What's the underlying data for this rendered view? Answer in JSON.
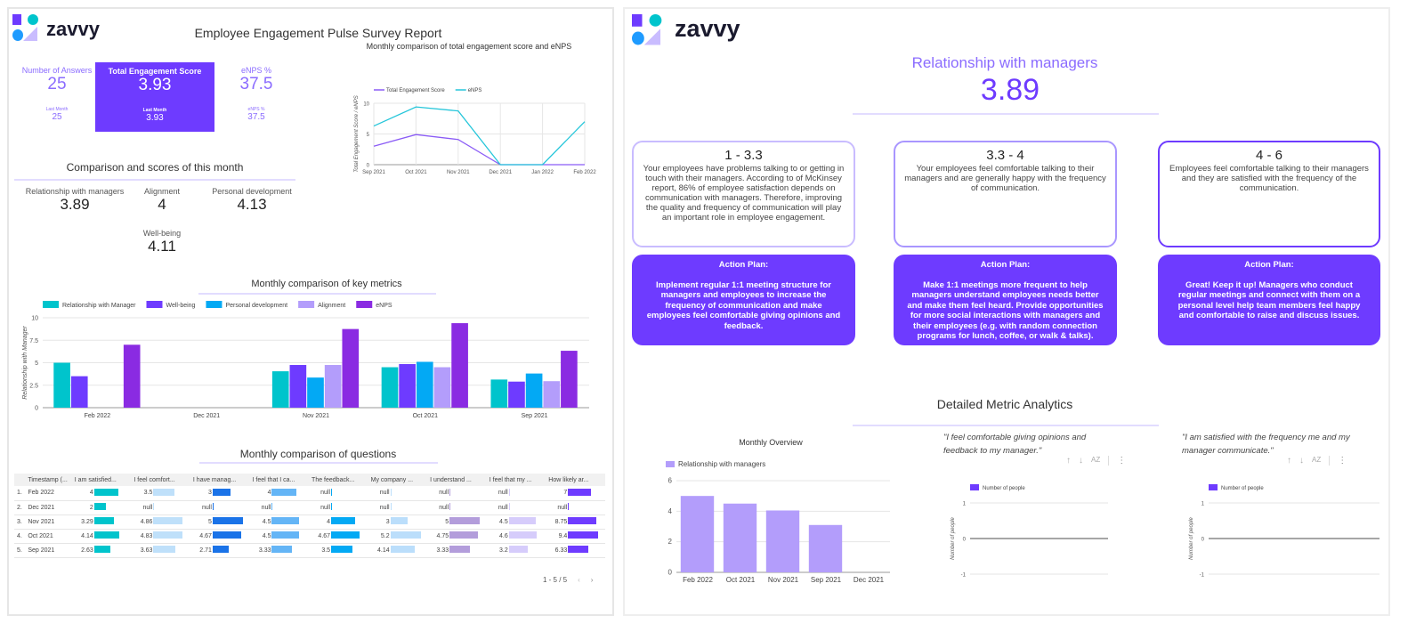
{
  "colors": {
    "accent": "#6e3bff",
    "accent_light": "#8b6cff",
    "teal": "#00c4cc"
  },
  "left": {
    "brand": "zavvy",
    "title": "Employee Engagement Pulse Survey Report",
    "kpis": {
      "answers": {
        "label": "Number of Answers",
        "value": "25",
        "last_label": "Last Month",
        "last_value": "25"
      },
      "engagement": {
        "label": "Total Engagement Score",
        "value": "3.93",
        "last_label": "Last Month",
        "last_value": "3.93"
      },
      "enps": {
        "label": "eNPS %",
        "value": "37.5",
        "last_label": "eNPS %",
        "last_value": "37.5"
      }
    },
    "comparison_title": "Comparison and scores of this month",
    "scores": [
      {
        "label": "Relationship with managers",
        "value": "3.89"
      },
      {
        "label": "Alignment",
        "value": "4"
      },
      {
        "label": "Personal development",
        "value": "4.13"
      },
      {
        "label": "Well-being",
        "value": "4.11"
      }
    ],
    "questions_title": "Monthly comparison of questions",
    "table": {
      "headers": [
        "",
        "Timestamp (...",
        "I am satisfied...",
        "I feel comfort...",
        "I have manag...",
        "I feel that I ca...",
        "The feedback...",
        "My company ...",
        "I understand ...",
        "I feel that my ...",
        "How likely ar..."
      ],
      "bar_colors": [
        "#00c4cc",
        "#bfe0fa",
        "#1a73e8",
        "#64b5f6",
        "#03a9f4",
        "#bbdefb",
        "#b39ddb",
        "#d6ccfb",
        "#6e3bff"
      ],
      "rows": [
        [
          "1.",
          "Feb 2022",
          "4",
          "3.5",
          "3",
          "4",
          "null",
          "null",
          "null",
          "null",
          "7"
        ],
        [
          "2.",
          "Dec 2021",
          "2",
          "null",
          "null",
          "null",
          "null",
          "null",
          "null",
          "null",
          "null"
        ],
        [
          "3.",
          "Nov 2021",
          "3.29",
          "4.86",
          "5",
          "4.5",
          "4",
          "3",
          "5",
          "4.5",
          "8.75"
        ],
        [
          "4.",
          "Oct 2021",
          "4.14",
          "4.83",
          "4.67",
          "4.5",
          "4.67",
          "5.2",
          "4.75",
          "4.6",
          "9.4"
        ],
        [
          "5.",
          "Sep 2021",
          "2.63",
          "3.63",
          "2.71",
          "3.33",
          "3.5",
          "4.14",
          "3.33",
          "3.2",
          "6.33"
        ]
      ],
      "pagination": "1 - 5 / 5"
    }
  },
  "right": {
    "brand": "zavvy",
    "metric_title": "Relationship with managers",
    "metric_value": "3.89",
    "cards": [
      {
        "range": "1 - 3.3",
        "text": "Your employees have problems talking to or getting in touch with their managers. According to of McKinsey report, 86% of employee satisfaction depends on communication with managers. Therefore, improving the quality and frequency of communication will play an important role in employee engagement.",
        "action_title": "Action Plan:",
        "action": "Implement regular 1:1 meeting structure for managers and employees to increase the frequency of communication and make employees feel comfortable giving opinions and feedback."
      },
      {
        "range": "3.3 - 4",
        "text": "Your employees feel comfortable talking to their managers and are generally happy with the frequency of communication.",
        "action_title": "Action Plan:",
        "action": "Make 1:1 meetings more frequent to help managers understand employees needs better and make them feel heard. Provide opportunities for more social interactions with managers and their employees (e.g. with random connection programs for lunch, coffee, or walk & talks)."
      },
      {
        "range": "4 - 6",
        "text": "Employees feel comfortable talking to their managers and they are satisfied with the frequency of the communication.",
        "action_title": "Action Plan:",
        "action": "Great! Keep it up! Managers who conduct regular meetings and connect with them on a personal level help team members feel happy and comfortable to raise and discuss issues."
      }
    ],
    "detailed_title": "Detailed Metric Analytics",
    "quotes": [
      "\"I feel comfortable giving opinions and feedback to my manager.\"",
      "\"I am satisfied with the frequency me and my manager communicate.\""
    ],
    "sort_icons": [
      "arrow-up-icon",
      "arrow-down-icon",
      "sort-az-icon",
      "more-vert-icon"
    ]
  },
  "chart_data": [
    {
      "id": "trend",
      "type": "line",
      "title": "Monthly comparison of total engagement score and eNPS",
      "ylabel": "Total Engagement Score / eNPS",
      "categories": [
        "Sep 2021",
        "Oct 2021",
        "Nov 2021",
        "Dec 2021",
        "Jan 2022",
        "Feb 2022"
      ],
      "ylim": [
        0,
        10
      ],
      "yticks": [
        0,
        5,
        10
      ],
      "grid": true,
      "legend": "top-left",
      "series": [
        {
          "name": "Total Engagement Score",
          "color": "#8b5cf6",
          "values": [
            3.0,
            4.9,
            4.1,
            0,
            0,
            0
          ]
        },
        {
          "name": "eNPS",
          "color": "#26c6da",
          "values": [
            6.3,
            9.4,
            8.75,
            0,
            0,
            7
          ]
        }
      ]
    },
    {
      "id": "keymetrics",
      "type": "bar",
      "title": "Monthly comparison of key metrics",
      "ylabel": "Relationship with Manager",
      "categories": [
        "Feb 2022",
        "Dec 2021",
        "Nov 2021",
        "Oct 2021",
        "Sep 2021"
      ],
      "ylim": [
        0,
        10
      ],
      "yticks": [
        0,
        2.5,
        5,
        7.5,
        10
      ],
      "grid": true,
      "legend": "top-left",
      "series": [
        {
          "name": "Relationship with Manager",
          "color": "#00c4cc",
          "values": [
            5,
            0,
            4.05,
            4.5,
            3.13
          ]
        },
        {
          "name": "Well-being",
          "color": "#6e3bff",
          "values": [
            3.5,
            0,
            4.75,
            4.85,
            2.9
          ]
        },
        {
          "name": "Personal development",
          "color": "#03a9f4",
          "values": [
            0,
            0,
            3.35,
            5.1,
            3.8
          ]
        },
        {
          "name": "Alignment",
          "color": "#b39dfb",
          "values": [
            0,
            0,
            4.75,
            4.5,
            2.95
          ]
        },
        {
          "name": "eNPS",
          "color": "#8a2be2",
          "values": [
            7,
            0,
            8.75,
            9.4,
            6.33
          ]
        }
      ]
    },
    {
      "id": "overview",
      "type": "bar",
      "title": "Monthly Overview",
      "ylabel": "",
      "categories": [
        "Feb 2022",
        "Oct 2021",
        "Nov 2021",
        "Sep 2021",
        "Dec 2021"
      ],
      "ylim": [
        0,
        6
      ],
      "yticks": [
        0,
        2,
        4,
        6
      ],
      "grid": true,
      "legend": "top-left",
      "series": [
        {
          "name": "Relationship with managers",
          "color": "#b39dfb",
          "values": [
            5,
            4.5,
            4.05,
            3.1,
            0
          ]
        }
      ]
    },
    {
      "id": "q1",
      "type": "bar",
      "title": "",
      "ylabel": "Number of people",
      "categories": [],
      "ylim": [
        -1,
        1
      ],
      "yticks": [
        -1,
        0,
        1
      ],
      "grid": true,
      "legend": "top-left",
      "series": [
        {
          "name": "Number of people",
          "color": "#6e3bff",
          "values": []
        }
      ]
    },
    {
      "id": "q2",
      "type": "bar",
      "title": "",
      "ylabel": "Number of people",
      "categories": [],
      "ylim": [
        -1,
        1
      ],
      "yticks": [
        -1,
        0,
        1
      ],
      "grid": true,
      "legend": "top-left",
      "series": [
        {
          "name": "Number of people",
          "color": "#6e3bff",
          "values": []
        }
      ]
    }
  ]
}
